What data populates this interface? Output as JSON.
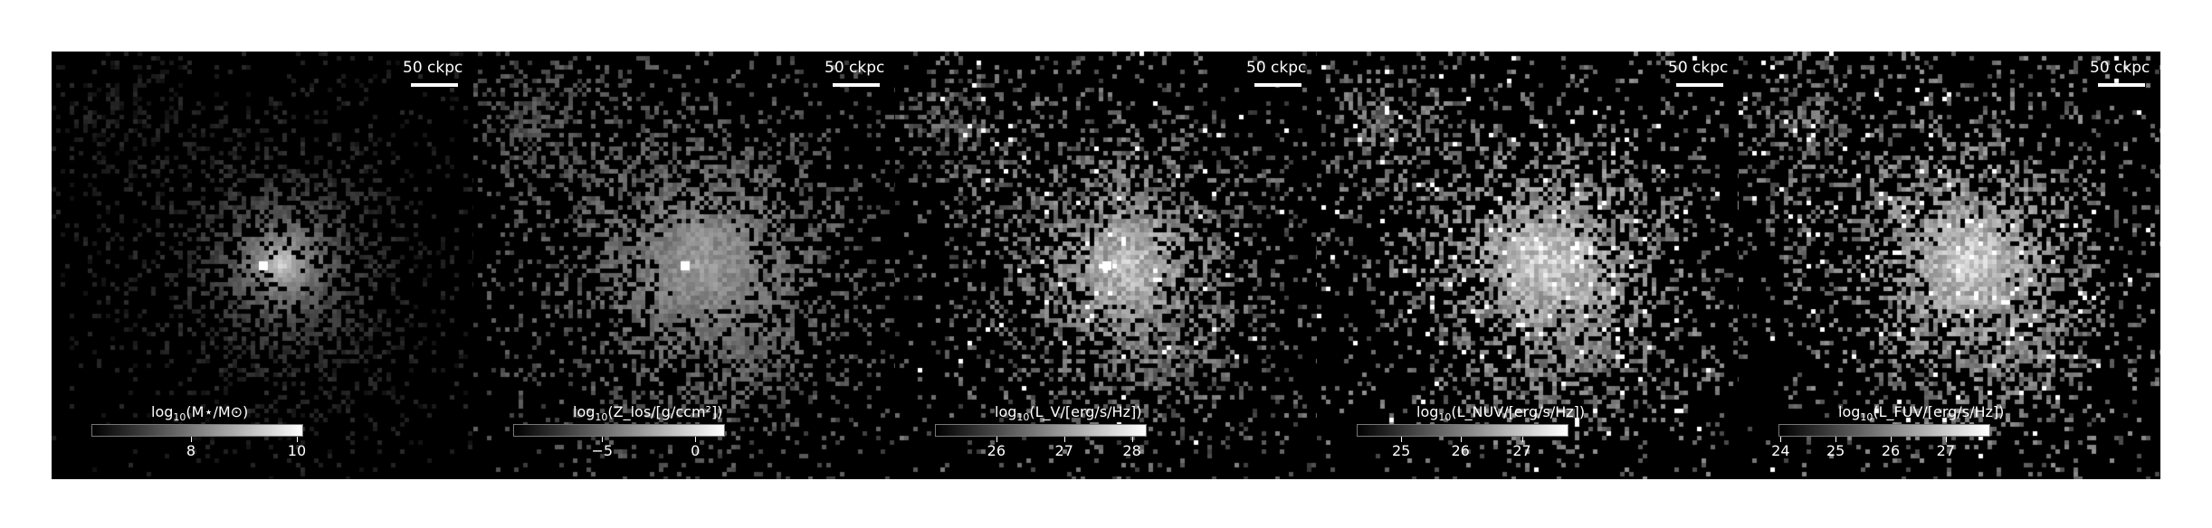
{
  "figure": {
    "scalebar_text": "50 ckpc",
    "panels": [
      {
        "id": "mstar",
        "colorbar_label_prefix": "log",
        "colorbar_label_sub": "10",
        "colorbar_label_body": "(M⋆/M⊙)",
        "ticks": [
          {
            "label": "8",
            "frac": 0.47
          },
          {
            "label": "10",
            "frac": 0.97
          }
        ],
        "style": "compact"
      },
      {
        "id": "metallicity",
        "colorbar_label_prefix": "log",
        "colorbar_label_sub": "10",
        "colorbar_label_body": "(Z_los/[g/ccm²])",
        "ticks": [
          {
            "label": "−5",
            "frac": 0.42
          },
          {
            "label": "0",
            "frac": 0.86
          }
        ],
        "style": "diffuse"
      },
      {
        "id": "lv",
        "colorbar_label_prefix": "log",
        "colorbar_label_sub": "10",
        "colorbar_label_body": "(L_V/[erg/s/Hz])",
        "ticks": [
          {
            "label": "26",
            "frac": 0.29
          },
          {
            "label": "27",
            "frac": 0.61
          },
          {
            "label": "28",
            "frac": 0.93
          }
        ],
        "style": "speckle"
      },
      {
        "id": "lnuv",
        "colorbar_label_prefix": "log",
        "colorbar_label_sub": "10",
        "colorbar_label_body": "(L_NUV/[erg/s/Hz])",
        "ticks": [
          {
            "label": "25",
            "frac": 0.21
          },
          {
            "label": "26",
            "frac": 0.49
          },
          {
            "label": "27",
            "frac": 0.78
          }
        ],
        "style": "bright"
      },
      {
        "id": "lfuv",
        "colorbar_label_prefix": "log",
        "colorbar_label_sub": "10",
        "colorbar_label_body": "(L_FUV/[erg/s/Hz])",
        "ticks": [
          {
            "label": "24",
            "frac": 0.01
          },
          {
            "label": "25",
            "frac": 0.27
          },
          {
            "label": "26",
            "frac": 0.53
          },
          {
            "label": "27",
            "frac": 0.79
          }
        ],
        "style": "bright"
      }
    ]
  }
}
